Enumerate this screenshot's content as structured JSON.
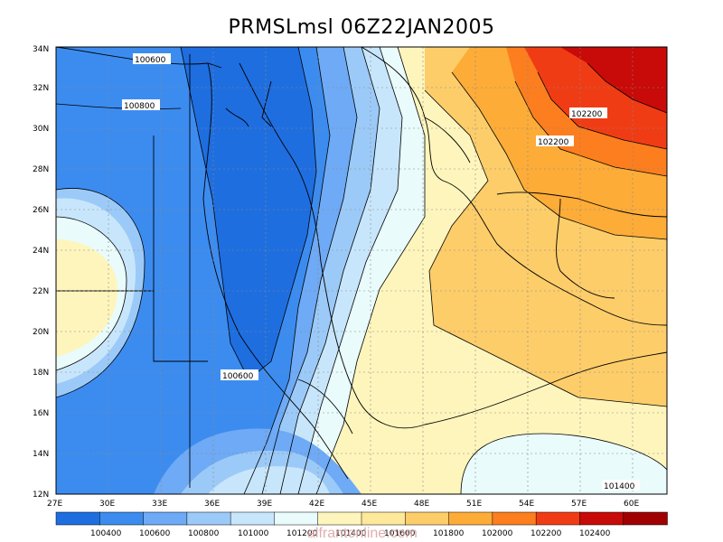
{
  "title": "PRMSLmsl 06Z22JAN2005",
  "map": {
    "lon_range": [
      27,
      62
    ],
    "lat_range": [
      12,
      34
    ],
    "lon_ticks": [
      "27E",
      "30E",
      "33E",
      "36E",
      "39E",
      "42E",
      "45E",
      "48E",
      "51E",
      "54E",
      "57E",
      "60E"
    ],
    "lat_ticks": [
      "12N",
      "14N",
      "16N",
      "18N",
      "20N",
      "22N",
      "24N",
      "26N",
      "28N",
      "30N",
      "32N",
      "34N"
    ],
    "contour_labels": [
      "100600",
      "100800",
      "100600",
      "102200",
      "102200",
      "101400"
    ]
  },
  "legend": {
    "values": [
      "100400",
      "100600",
      "100800",
      "101000",
      "101200",
      "101400",
      "101600",
      "101800",
      "102000",
      "102200",
      "102400"
    ],
    "colors": [
      "#1e6ee0",
      "#3c8cf0",
      "#6eaaf5",
      "#9ccaf8",
      "#c8e6fb",
      "#e9fbfb",
      "#fef5bc",
      "#fee89a",
      "#fdcd6a",
      "#fdac38",
      "#fc7e1e",
      "#f03c14",
      "#c80a08",
      "#a00000"
    ]
  },
  "watermark": "alfrantonline.com"
}
